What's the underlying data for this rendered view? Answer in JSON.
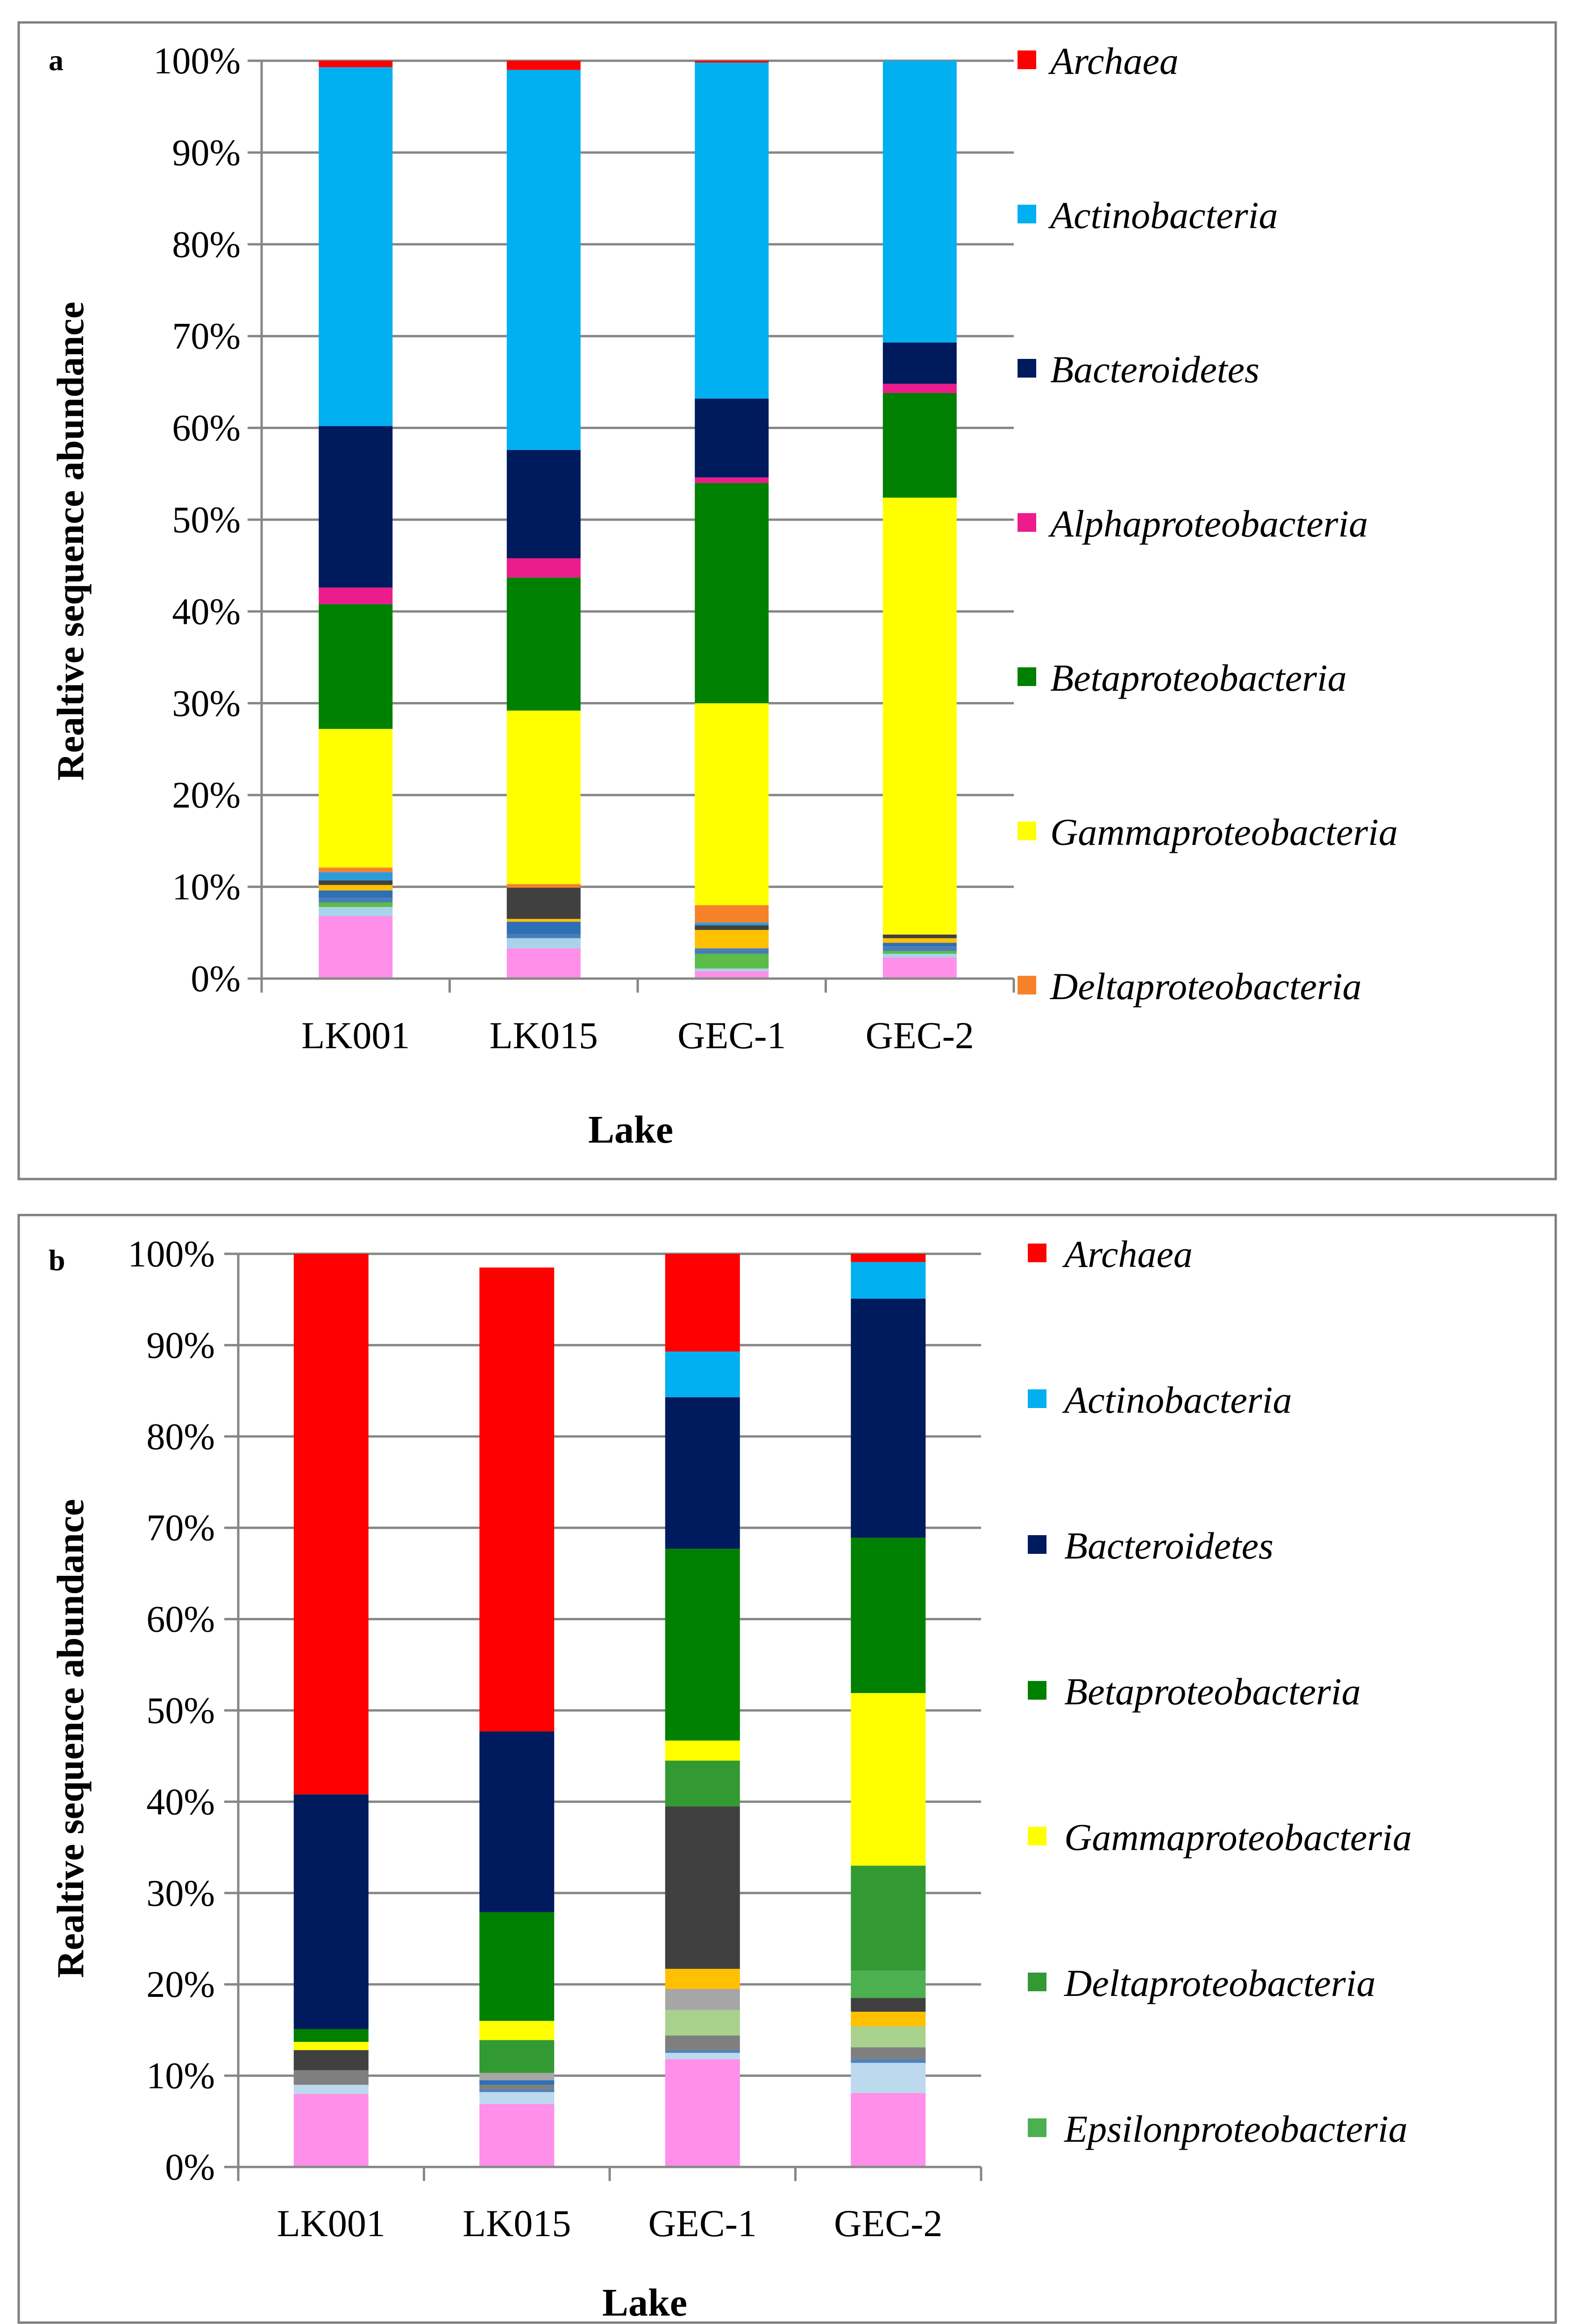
{
  "chart_data": [
    {
      "panel": "a",
      "type": "bar",
      "stacked": true,
      "percent_axis": true,
      "categories": [
        "LK001",
        "LK015",
        "GEC-1",
        "GEC-2"
      ],
      "xlabel": "Lake",
      "ylabel": "Realtive  sequence  abundance",
      "ylim": [
        0,
        100
      ],
      "yticks": [
        "0%",
        "10%",
        "20%",
        "30%",
        "40%",
        "50%",
        "60%",
        "70%",
        "80%",
        "90%",
        "100%"
      ],
      "grid": true,
      "legend_position": "right",
      "series": [
        {
          "values": [
            6.8,
            3.3,
            0.8,
            2.3
          ],
          "color": "#ff8fe8"
        },
        {
          "values": [
            1.0,
            1.1,
            0.3,
            0.4
          ],
          "color": "#a9d3ea"
        },
        {
          "values": [
            0.5,
            0.0,
            1.6,
            0.3
          ],
          "color": "#5bbc4a"
        },
        {
          "values": [
            0.5,
            0.4,
            0.6,
            0.5
          ],
          "color": "#4a7db5"
        },
        {
          "values": [
            0.8,
            1.4,
            0.0,
            0.4
          ],
          "color": "#2e6fb7"
        },
        {
          "values": [
            0.6,
            0.3,
            2.0,
            0.5
          ],
          "color": "#ffc000"
        },
        {
          "values": [
            0.5,
            3.4,
            0.5,
            0.4
          ],
          "color": "#404040"
        },
        {
          "values": [
            0.9,
            0.0,
            0.3,
            0.0
          ],
          "color": "#2e9ad8"
        },
        {
          "name": "Deltaproteobacteria",
          "values": [
            0.5,
            0.4,
            1.9,
            0.0
          ],
          "color": "#f5822a"
        },
        {
          "name": "Gammaproteobacteria",
          "values": [
            15.1,
            18.9,
            22.0,
            47.6
          ],
          "color": "#ffff00"
        },
        {
          "name": "Betaproteobacteria",
          "values": [
            13.6,
            14.5,
            24.0,
            11.4
          ],
          "color": "#008000"
        },
        {
          "name": "Alphaproteobacteria",
          "values": [
            1.8,
            2.1,
            0.6,
            1.0
          ],
          "color": "#ec1c8c"
        },
        {
          "name": "Bacteroidetes",
          "values": [
            17.6,
            11.8,
            8.6,
            4.5
          ],
          "color": "#001a5e"
        },
        {
          "name": "Actinobacteria",
          "values": [
            39.1,
            41.4,
            36.6,
            30.7
          ],
          "color": "#00b0f0"
        },
        {
          "name": "Archaea",
          "values": [
            0.7,
            1.0,
            0.2,
            0.0
          ],
          "color": "#ff0000"
        }
      ]
    },
    {
      "panel": "b",
      "type": "bar",
      "stacked": true,
      "percent_axis": true,
      "categories": [
        "LK001",
        "LK015",
        "GEC-1",
        "GEC-2"
      ],
      "xlabel": "Lake",
      "ylabel": "Realtive  sequence  abundance",
      "ylim": [
        0,
        100
      ],
      "yticks": [
        "0%",
        "10%",
        "20%",
        "30%",
        "40%",
        "50%",
        "60%",
        "70%",
        "80%",
        "90%",
        "100%"
      ],
      "grid": true,
      "legend_position": "right",
      "series": [
        {
          "values": [
            8.0,
            6.9,
            11.8,
            8.1
          ],
          "color": "#ff8fe8"
        },
        {
          "values": [
            1.0,
            1.3,
            0.7,
            3.3
          ],
          "color": "#bcd9ee"
        },
        {
          "values": [
            0.0,
            0.3,
            0.3,
            0.4
          ],
          "color": "#4f81bd"
        },
        {
          "values": [
            1.6,
            0.5,
            1.6,
            1.3
          ],
          "color": "#7f7f7f"
        },
        {
          "values": [
            0.0,
            0.5,
            0.0,
            0.0
          ],
          "color": "#2e6fb7"
        },
        {
          "values": [
            0.0,
            0.0,
            2.8,
            2.3
          ],
          "color": "#a9d18e"
        },
        {
          "values": [
            0.0,
            0.8,
            2.3,
            0.0
          ],
          "color": "#a6a6a6"
        },
        {
          "values": [
            0.0,
            0.0,
            2.2,
            1.6
          ],
          "color": "#ffc000"
        },
        {
          "values": [
            2.2,
            0.0,
            17.8,
            1.5
          ],
          "color": "#404040"
        },
        {
          "name": "Epsilonproteobacteria",
          "values": [
            0.0,
            0.0,
            0.0,
            3.0
          ],
          "color": "#4caf50"
        },
        {
          "name": "Deltaproteobacteria",
          "values": [
            0.0,
            3.6,
            5.0,
            11.5
          ],
          "color": "#339933"
        },
        {
          "name": "Gammaproteobacteria",
          "values": [
            0.9,
            2.1,
            2.2,
            18.9
          ],
          "color": "#ffff00"
        },
        {
          "name": "Betaproteobacteria",
          "values": [
            1.4,
            11.9,
            21.0,
            17.0
          ],
          "color": "#008000"
        },
        {
          "name": "Bacteroidetes",
          "values": [
            25.7,
            19.8,
            16.6,
            26.2
          ],
          "color": "#001a5e"
        },
        {
          "name": "Actinobacteria",
          "values": [
            0.0,
            0.0,
            5.0,
            4.0
          ],
          "color": "#00b0f0"
        },
        {
          "name": "Archaea",
          "values": [
            59.2,
            50.8,
            10.7,
            0.9
          ],
          "color": "#ff0000"
        }
      ]
    }
  ]
}
